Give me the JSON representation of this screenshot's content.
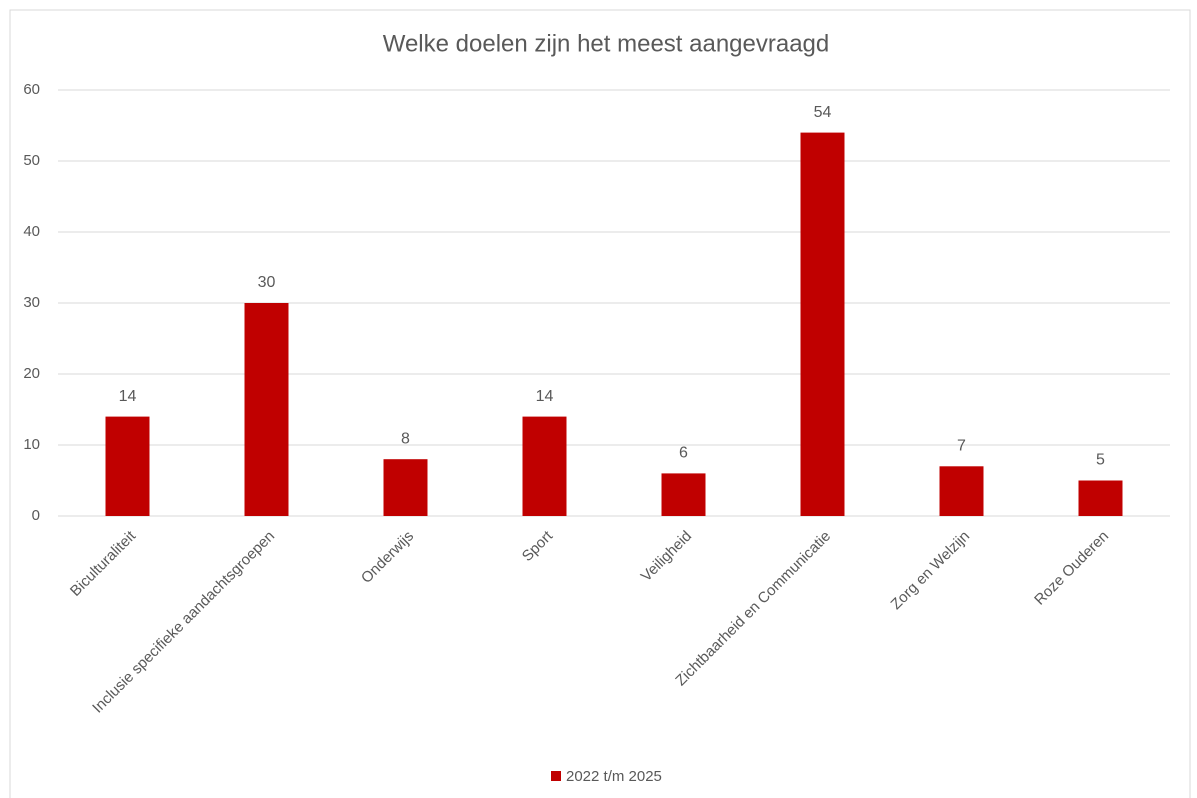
{
  "chart_data": {
    "type": "bar",
    "title": "Welke doelen zijn het meest aangevraagd",
    "categories": [
      "Biculturaliteit",
      "Inclusie specifieke aandachtsgroepen",
      "Onderwijs",
      "Sport",
      "Veiligheid",
      "Zichtbaarheid en Communicatie",
      "Zorg en Welzijn",
      "Roze Ouderen"
    ],
    "series": [
      {
        "name": "2022 t/m 2025",
        "color": "#c00000",
        "values": [
          14,
          30,
          8,
          14,
          6,
          54,
          7,
          5
        ]
      }
    ],
    "ylim": [
      0,
      60
    ],
    "yticks": [
      0,
      10,
      20,
      30,
      40,
      50,
      60
    ],
    "grid": true,
    "legend": "bottom"
  }
}
